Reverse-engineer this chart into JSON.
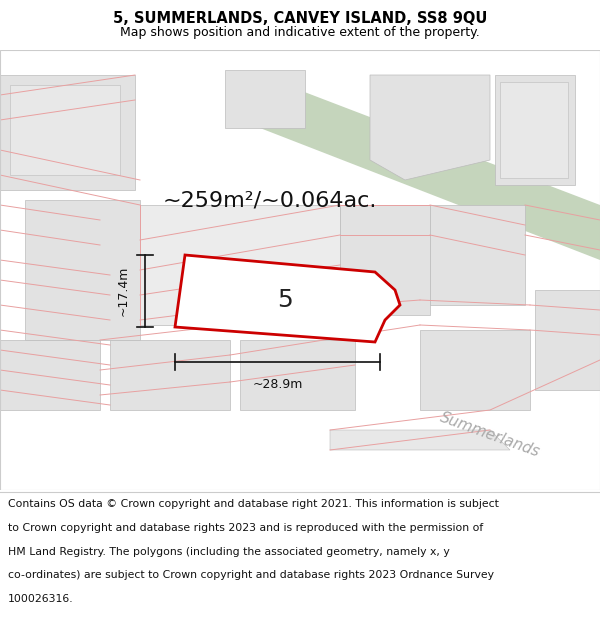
{
  "title": "5, SUMMERLANDS, CANVEY ISLAND, SS8 9QU",
  "subtitle": "Map shows position and indicative extent of the property.",
  "area_label": "~259m²/~0.064ac.",
  "plot_number": "5",
  "width_label": "~28.9m",
  "height_label": "~17.4m",
  "street_name": "Summerlands",
  "footer_line1": "Contains OS data © Crown copyright and database right 2021. This information is subject",
  "footer_line2": "to Crown copyright and database rights 2023 and is reproduced with the permission of",
  "footer_line3": "HM Land Registry. The polygons (including the associated geometry, namely x, y",
  "footer_line4": "co-ordinates) are subject to Crown copyright and database rights 2023 Ordnance Survey",
  "footer_line5": "100026316.",
  "bg_color": "#ffffff",
  "map_bg": "#f2f2f2",
  "plot_fill": "#ffffff",
  "plot_edge": "#cc0000",
  "road_color": "#c5d5bc",
  "parcel_color": "#e8a0a0",
  "building_fill": "#e2e2e2",
  "building_edge": "#bbbbbb",
  "title_fontsize": 10.5,
  "subtitle_fontsize": 9,
  "area_fontsize": 16,
  "dim_fontsize": 9,
  "street_fontsize": 11,
  "footer_fontsize": 7.8
}
